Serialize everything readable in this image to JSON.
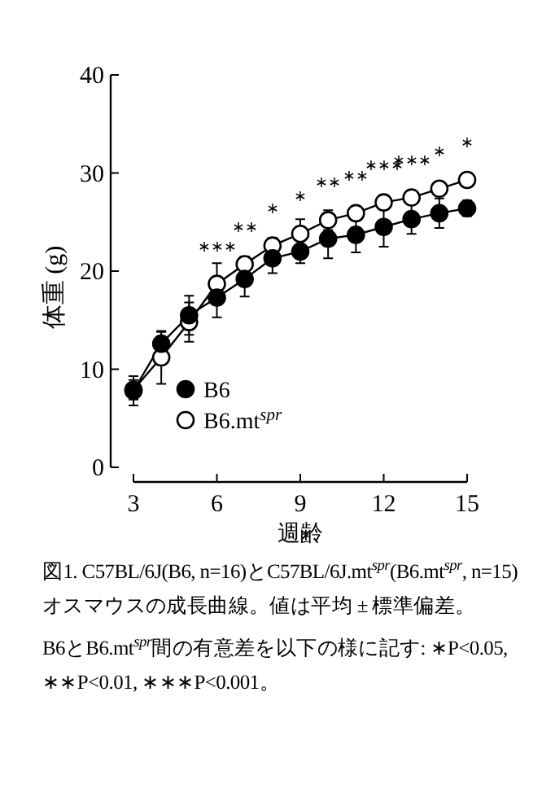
{
  "chart_data": {
    "type": "line",
    "xlabel": "週齢",
    "ylabel": "体重 (g)",
    "x": [
      3,
      4,
      5,
      6,
      7,
      8,
      9,
      10,
      11,
      12,
      13,
      14,
      15
    ],
    "xlim": [
      3,
      15
    ],
    "xticks": [
      3,
      6,
      9,
      12,
      15
    ],
    "ylim": [
      0,
      40
    ],
    "yticks": [
      0,
      10,
      20,
      30,
      40
    ],
    "marker": "circle",
    "legend": "bottom left",
    "grid": false,
    "series": [
      {
        "name": "B6",
        "color": "#000000",
        "values": [
          7.8,
          12.6,
          15.5,
          17.3,
          19.2,
          21.3,
          22.0,
          23.3,
          23.7,
          24.5,
          25.3,
          25.9,
          26.4
        ],
        "errors": [
          1.5,
          1.2,
          2,
          2,
          1.8,
          1.5,
          1.2,
          2,
          1.8,
          2,
          1.5,
          1.5,
          0.8
        ]
      },
      {
        "name": "B6.mt$^{spr}$",
        "color": "#ffffff",
        "values": [
          7.9,
          11.2,
          14.8,
          18.7,
          20.7,
          22.6,
          23.8,
          25.2,
          25.9,
          27.0,
          27.5,
          28.4,
          29.3
        ],
        "errors": [
          1,
          2.7,
          2,
          2.1,
          0.8,
          0.8,
          1.5,
          1,
          null,
          null,
          null,
          null,
          null
        ]
      }
    ],
    "annotations": [
      {
        "text": "∗∗∗",
        "x": 6,
        "y": 18.7
      },
      {
        "text": "∗∗",
        "x": 7,
        "y": 20.7
      },
      {
        "text": "∗",
        "x": 8,
        "y": 22.6
      },
      {
        "text": "∗",
        "x": 9,
        "y": 23.8
      },
      {
        "text": "∗∗",
        "x": 10,
        "y": 25.2
      },
      {
        "text": "∗∗",
        "x": 11,
        "y": 25.9
      },
      {
        "text": "∗∗∗",
        "x": 12,
        "y": 27.0
      },
      {
        "text": "∗∗∗",
        "x": 13,
        "y": 27.5
      },
      {
        "text": "∗",
        "x": 14,
        "y": 28.4
      },
      {
        "text": "∗",
        "x": 15,
        "y": 29.3
      },
      "図1. C57BL/6J(B6, n=16)とC57BL/6J.mt$^{spr}$(B6.mt$^{spr}$, n=15)オスマウスの成長曲線。値は平均 ± 標準偏差。",
      "B6とB6.mt$^{spr}$間の有意差を以下の様に記す: ∗P<0.05, ∗∗P<0.01, ∗∗∗P<0.001。"
    ]
  }
}
